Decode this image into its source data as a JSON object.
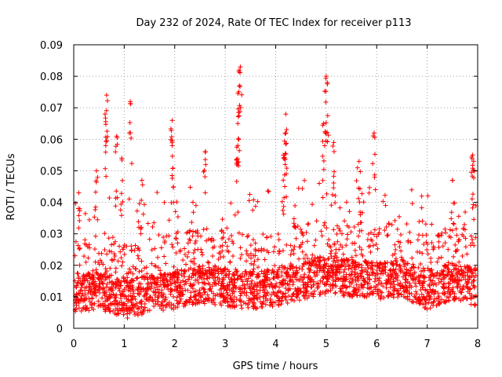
{
  "chart_data": {
    "type": "scatter",
    "title": "Day 232 of 2024, Rate Of TEC Index for receiver p113",
    "xlabel": "GPS time / hours",
    "ylabel": "ROTI / TECUs",
    "xlim": [
      0,
      8
    ],
    "ylim": [
      0,
      0.09
    ],
    "xticks": [
      "0",
      "1",
      "2",
      "3",
      "4",
      "5",
      "6",
      "7",
      "8"
    ],
    "yticks": [
      "0",
      "0.01",
      "0.02",
      "0.03",
      "0.04",
      "0.05",
      "0.06",
      "0.07",
      "0.08",
      "0.09"
    ],
    "grid": true,
    "marker": "+",
    "series_color": "#ff0000",
    "peaks": [
      {
        "x": 0.1,
        "y": 0.043
      },
      {
        "x": 0.45,
        "y": 0.05
      },
      {
        "x": 0.65,
        "y": 0.074
      },
      {
        "x": 0.62,
        "y": 0.068
      },
      {
        "x": 0.85,
        "y": 0.061
      },
      {
        "x": 0.95,
        "y": 0.054
      },
      {
        "x": 1.12,
        "y": 0.072
      },
      {
        "x": 1.35,
        "y": 0.047
      },
      {
        "x": 1.95,
        "y": 0.066
      },
      {
        "x": 1.95,
        "y": 0.058
      },
      {
        "x": 2.6,
        "y": 0.056
      },
      {
        "x": 3.3,
        "y": 0.083
      },
      {
        "x": 3.28,
        "y": 0.077
      },
      {
        "x": 3.25,
        "y": 0.065
      },
      {
        "x": 3.25,
        "y": 0.058
      },
      {
        "x": 4.2,
        "y": 0.068
      },
      {
        "x": 4.2,
        "y": 0.062
      },
      {
        "x": 4.15,
        "y": 0.055
      },
      {
        "x": 4.95,
        "y": 0.065
      },
      {
        "x": 5.0,
        "y": 0.08
      },
      {
        "x": 5.02,
        "y": 0.078
      },
      {
        "x": 5.15,
        "y": 0.059
      },
      {
        "x": 5.65,
        "y": 0.053
      },
      {
        "x": 5.95,
        "y": 0.062
      },
      {
        "x": 7.5,
        "y": 0.047
      },
      {
        "x": 7.9,
        "y": 0.055
      },
      {
        "x": 7.92,
        "y": 0.053
      }
    ],
    "baseline_profile": [
      {
        "x": 0.0,
        "y": 0.011
      },
      {
        "x": 0.5,
        "y": 0.012
      },
      {
        "x": 1.0,
        "y": 0.009
      },
      {
        "x": 1.5,
        "y": 0.011
      },
      {
        "x": 2.0,
        "y": 0.012
      },
      {
        "x": 2.5,
        "y": 0.014
      },
      {
        "x": 3.0,
        "y": 0.013
      },
      {
        "x": 3.5,
        "y": 0.012
      },
      {
        "x": 4.0,
        "y": 0.013
      },
      {
        "x": 4.5,
        "y": 0.015
      },
      {
        "x": 5.0,
        "y": 0.017
      },
      {
        "x": 5.5,
        "y": 0.016
      },
      {
        "x": 6.0,
        "y": 0.015
      },
      {
        "x": 6.5,
        "y": 0.016
      },
      {
        "x": 7.0,
        "y": 0.012
      },
      {
        "x": 7.5,
        "y": 0.015
      },
      {
        "x": 8.0,
        "y": 0.013
      }
    ],
    "approx_point_count": 2600
  }
}
